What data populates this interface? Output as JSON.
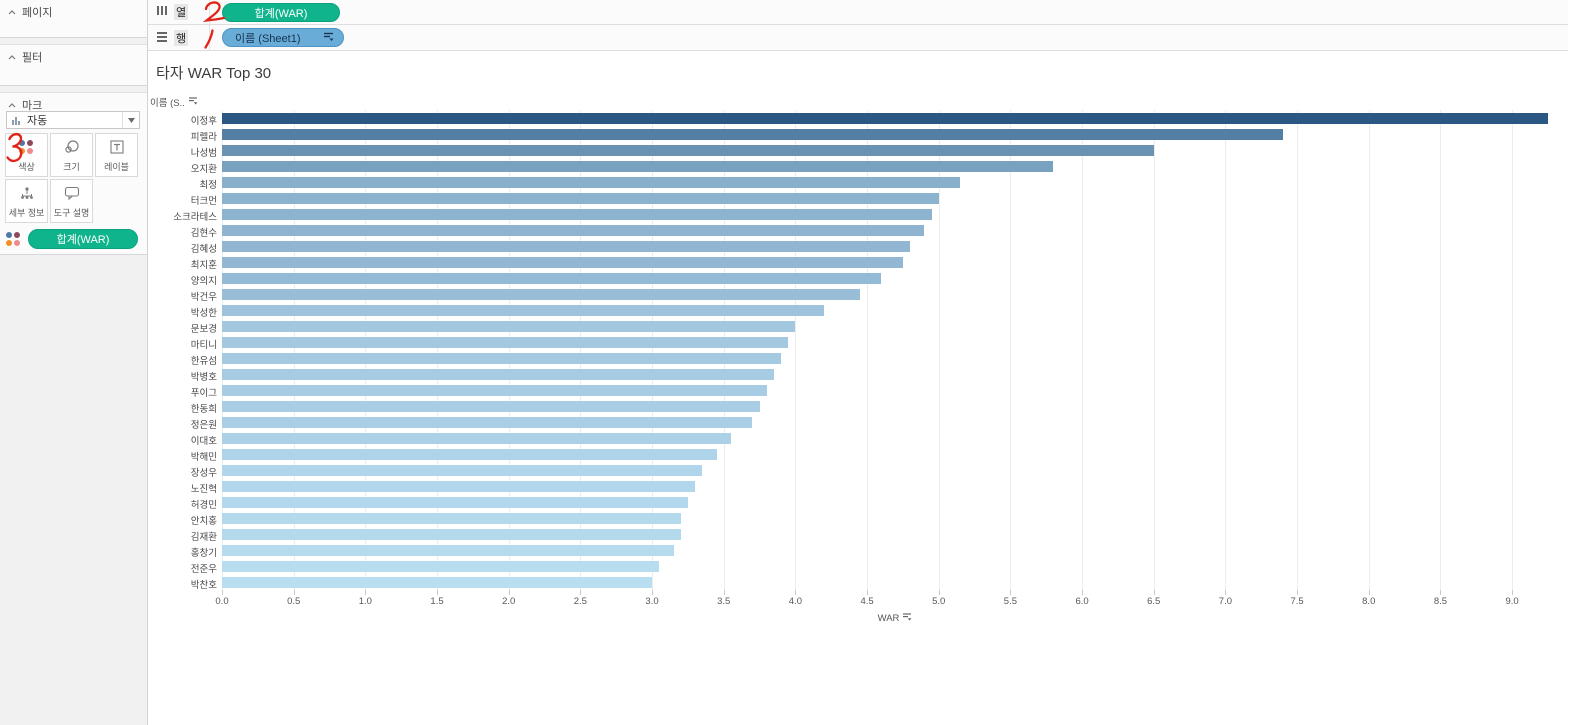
{
  "sidebar": {
    "pages_label": "페이지",
    "filters_label": "필터",
    "marks_label": "마크",
    "mark_type": "자동",
    "buttons": [
      {
        "label": "색상",
        "icon": "color-dots-icon"
      },
      {
        "label": "크기",
        "icon": "size-circles-icon"
      },
      {
        "label": "레이블",
        "icon": "label-t-icon"
      },
      {
        "label": "세부 정보",
        "icon": "detail-network-icon"
      },
      {
        "label": "도구 설명",
        "icon": "tooltip-bubble-icon"
      }
    ],
    "legend_pill": "합계(WAR)",
    "legend_dot_colors": [
      "#4e79a7",
      "#8c4a5e",
      "#f28e2b",
      "#ef8a8f"
    ]
  },
  "shelves": {
    "columns_label": "열",
    "rows_label": "행",
    "columns_pill": "합계(WAR)",
    "rows_pill": "이름 (Sheet1)",
    "pill_green_color": "#10b48c",
    "pill_blue_color": "#6aacd8"
  },
  "annotations": {
    "digits": [
      "2",
      "1",
      "3"
    ],
    "color": "#e02419"
  },
  "chart_data": {
    "type": "bar",
    "orientation": "horizontal",
    "title": "타자 WAR Top 30",
    "row_axis_header": "이름 (S..",
    "xlabel": "WAR",
    "xlim": [
      0,
      9.39
    ],
    "ticks": [
      0,
      0.5,
      1,
      1.5,
      2,
      2.5,
      3,
      3.5,
      4,
      4.5,
      5,
      5.5,
      6,
      6.5,
      7,
      7.5,
      8,
      8.5,
      9
    ],
    "grid": true,
    "sort": "descending",
    "categories": [
      "이정후",
      "피렐라",
      "나성범",
      "오지환",
      "최정",
      "터크먼",
      "소크라테스",
      "김현수",
      "김혜성",
      "최지훈",
      "양의지",
      "박건우",
      "박성한",
      "문보경",
      "마티니",
      "한유섬",
      "박병호",
      "푸이그",
      "한동희",
      "정은원",
      "이대호",
      "박해민",
      "장성우",
      "노진혁",
      "허경민",
      "안치홍",
      "김재환",
      "홍창기",
      "전준우",
      "박찬호"
    ],
    "values": [
      9.25,
      7.4,
      6.5,
      5.8,
      5.15,
      5.0,
      4.95,
      4.9,
      4.8,
      4.75,
      4.6,
      4.45,
      4.2,
      4.0,
      3.95,
      3.9,
      3.85,
      3.8,
      3.75,
      3.7,
      3.55,
      3.45,
      3.35,
      3.3,
      3.25,
      3.2,
      3.2,
      3.15,
      3.05,
      3.0
    ],
    "color_scale": {
      "min_value": 3.0,
      "max_value": 9.25,
      "min_color": "#b9ddf1",
      "max_color": "#2a5783"
    }
  }
}
